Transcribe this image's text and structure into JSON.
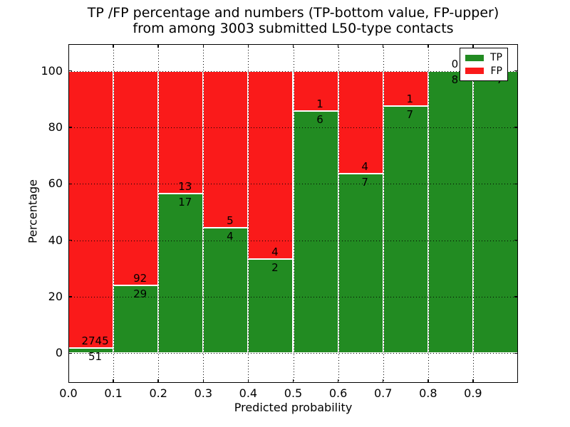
{
  "chart_data": {
    "type": "bar",
    "stacked": true,
    "percent_normalized": true,
    "title_line1": "TP /FP percentage and numbers (TP-bottom value, FP-upper)",
    "title_line2": "from among 3003 submitted L50-type contacts",
    "xlabel": "Predicted probability",
    "ylabel": "Percentage",
    "x_tick_labels": [
      "0.0",
      "0.1",
      "0.2",
      "0.3",
      "0.4",
      "0.5",
      "0.6",
      "0.7",
      "0.8",
      "0.9"
    ],
    "y_ticks": [
      0,
      20,
      40,
      60,
      80,
      100
    ],
    "xlim": [
      0.0,
      1.0
    ],
    "ylim": [
      -10.5,
      109.5
    ],
    "bin_width": 0.1,
    "grid": true,
    "grid_style": "dotted",
    "legend_position": "upper right",
    "bins": [
      {
        "x0": 0.0,
        "tp": 51,
        "fp": 2745
      },
      {
        "x0": 0.1,
        "tp": 29,
        "fp": 92
      },
      {
        "x0": 0.2,
        "tp": 17,
        "fp": 13
      },
      {
        "x0": 0.3,
        "tp": 4,
        "fp": 5
      },
      {
        "x0": 0.4,
        "tp": 2,
        "fp": 4
      },
      {
        "x0": 0.5,
        "tp": 6,
        "fp": 1
      },
      {
        "x0": 0.6,
        "tp": 7,
        "fp": 4
      },
      {
        "x0": 0.7,
        "tp": 7,
        "fp": 1
      },
      {
        "x0": 0.8,
        "tp": 8,
        "fp": 0
      },
      {
        "x0": 0.9,
        "tp": 7,
        "fp": 0
      }
    ],
    "legend": [
      {
        "label": "TP",
        "color": "#228b22"
      },
      {
        "label": "FP",
        "color": "#fa1a1a"
      }
    ],
    "colors": {
      "tp": "#228b22",
      "fp": "#fa1a1a",
      "bar_edge": "#ffffff",
      "grid": "#000000",
      "frame": "#000000",
      "background": "#ffffff",
      "text": "#000000"
    }
  }
}
